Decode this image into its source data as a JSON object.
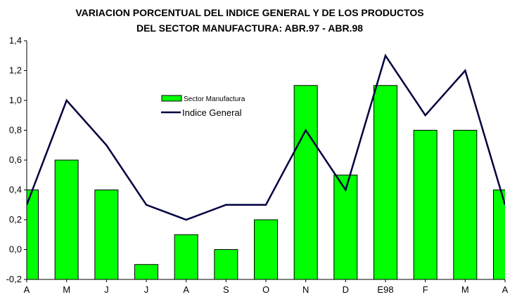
{
  "chart_data": {
    "type": "bar+line",
    "title_lines": [
      "VARIACION PORCENTUAL DEL INDICE GENERAL Y DE LOS PRODUCTOS",
      "DEL SECTOR MANUFACTURA: ABR.97 - ABR.98"
    ],
    "categories": [
      "A",
      "M",
      "J",
      "J",
      "A",
      "S",
      "O",
      "N",
      "D",
      "E98",
      "F",
      "M",
      "A"
    ],
    "series": [
      {
        "name": "Sector Manufactura",
        "type": "bar",
        "color": "#00ff00",
        "values": [
          0.4,
          0.6,
          0.4,
          -0.1,
          0.1,
          0.0,
          0.2,
          1.1,
          0.5,
          1.1,
          0.8,
          0.8,
          0.4
        ]
      },
      {
        "name": "Indice General",
        "type": "line",
        "color": "#000040",
        "values": [
          0.3,
          1.0,
          0.7,
          0.3,
          0.2,
          0.3,
          0.3,
          0.8,
          0.4,
          1.3,
          0.9,
          1.2,
          0.3
        ]
      }
    ],
    "yticks": [
      "-0,2",
      "0,0",
      "0,2",
      "0,4",
      "0,6",
      "0,8",
      "1,0",
      "1,2",
      "1,4"
    ],
    "ylim": [
      -0.2,
      1.4
    ],
    "grid": false,
    "legend": "upper-center"
  }
}
